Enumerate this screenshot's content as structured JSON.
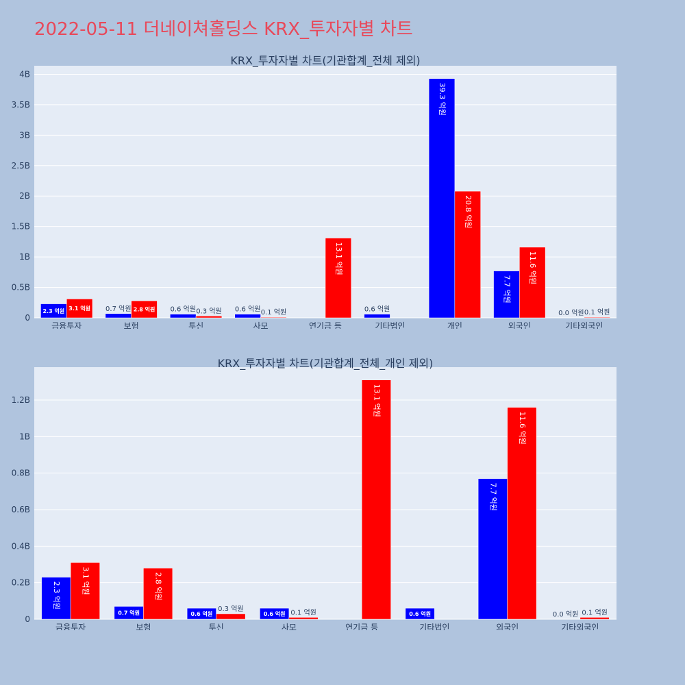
{
  "title": "2022-05-11 더네이쳐홀딩스 KRX_투자자별 차트",
  "colors": {
    "buy": "#0000ff",
    "sell": "#ff0000",
    "plot_bg": "#e5ecf6",
    "page_bg": "#b0c4de",
    "title": "#e8495a"
  },
  "chart_data": [
    {
      "type": "bar",
      "title": "KRX_투자자별 차트(기관합계_전체 제외)",
      "categories": [
        "금융투자",
        "보험",
        "투신",
        "사모",
        "연기금 등",
        "기타법인",
        "개인",
        "외국인",
        "기타외국인"
      ],
      "series": [
        {
          "color": "#0000ff",
          "values": [
            230000000,
            70000000,
            60000000,
            60000000,
            0,
            60000000,
            3930000000,
            770000000,
            0
          ],
          "labels": [
            "2.3 억원",
            "0.7 억원",
            "0.6 억원",
            "0.6 억원",
            "",
            "0.6 억원",
            "39.3 억원",
            "7.7 억원",
            "0.0 억원"
          ]
        },
        {
          "color": "#ff0000",
          "values": [
            310000000,
            280000000,
            30000000,
            10000000,
            1310000000,
            0,
            2080000000,
            1160000000,
            10000000
          ],
          "labels": [
            "3.1 억원",
            "2.8 억원",
            "0.3 억원",
            "0.1 억원",
            "13.1 억원",
            "",
            "20.8 억원",
            "11.6 억원",
            "0.1 억원"
          ]
        }
      ],
      "yticks": [
        0,
        500000000,
        1000000000,
        1500000000,
        2000000000,
        2500000000,
        3000000000,
        3500000000,
        4000000000
      ],
      "ytick_labels": [
        "0",
        "0.5B",
        "1B",
        "1.5B",
        "2B",
        "2.5B",
        "3B",
        "3.5B",
        "4B"
      ],
      "ylim": [
        0,
        4140000000
      ],
      "grid": true
    },
    {
      "type": "bar",
      "title": "KRX_투자자별 차트(기관합계_전체_개인 제외)",
      "categories": [
        "금융투자",
        "보험",
        "투신",
        "사모",
        "연기금 등",
        "기타법인",
        "외국인",
        "기타외국인"
      ],
      "series": [
        {
          "color": "#0000ff",
          "values": [
            230000000,
            70000000,
            60000000,
            60000000,
            0,
            60000000,
            770000000,
            0
          ],
          "labels": [
            "2.3 억원",
            "0.7 억원",
            "0.6 억원",
            "0.6 억원",
            "",
            "0.6 억원",
            "7.7 억원",
            "0.0 억원"
          ]
        },
        {
          "color": "#ff0000",
          "values": [
            310000000,
            280000000,
            30000000,
            10000000,
            1310000000,
            0,
            1160000000,
            10000000
          ],
          "labels": [
            "3.1 억원",
            "2.8 억원",
            "0.3 억원",
            "0.1 억원",
            "13.1 억원",
            "",
            "11.6 억원",
            "0.1 억원"
          ]
        }
      ],
      "yticks": [
        0,
        200000000,
        400000000,
        600000000,
        800000000,
        1000000000,
        1200000000
      ],
      "ytick_labels": [
        "0",
        "0.2B",
        "0.4B",
        "0.6B",
        "0.8B",
        "1B",
        "1.2B"
      ],
      "ylim": [
        0,
        1380000000
      ],
      "grid": true
    }
  ]
}
